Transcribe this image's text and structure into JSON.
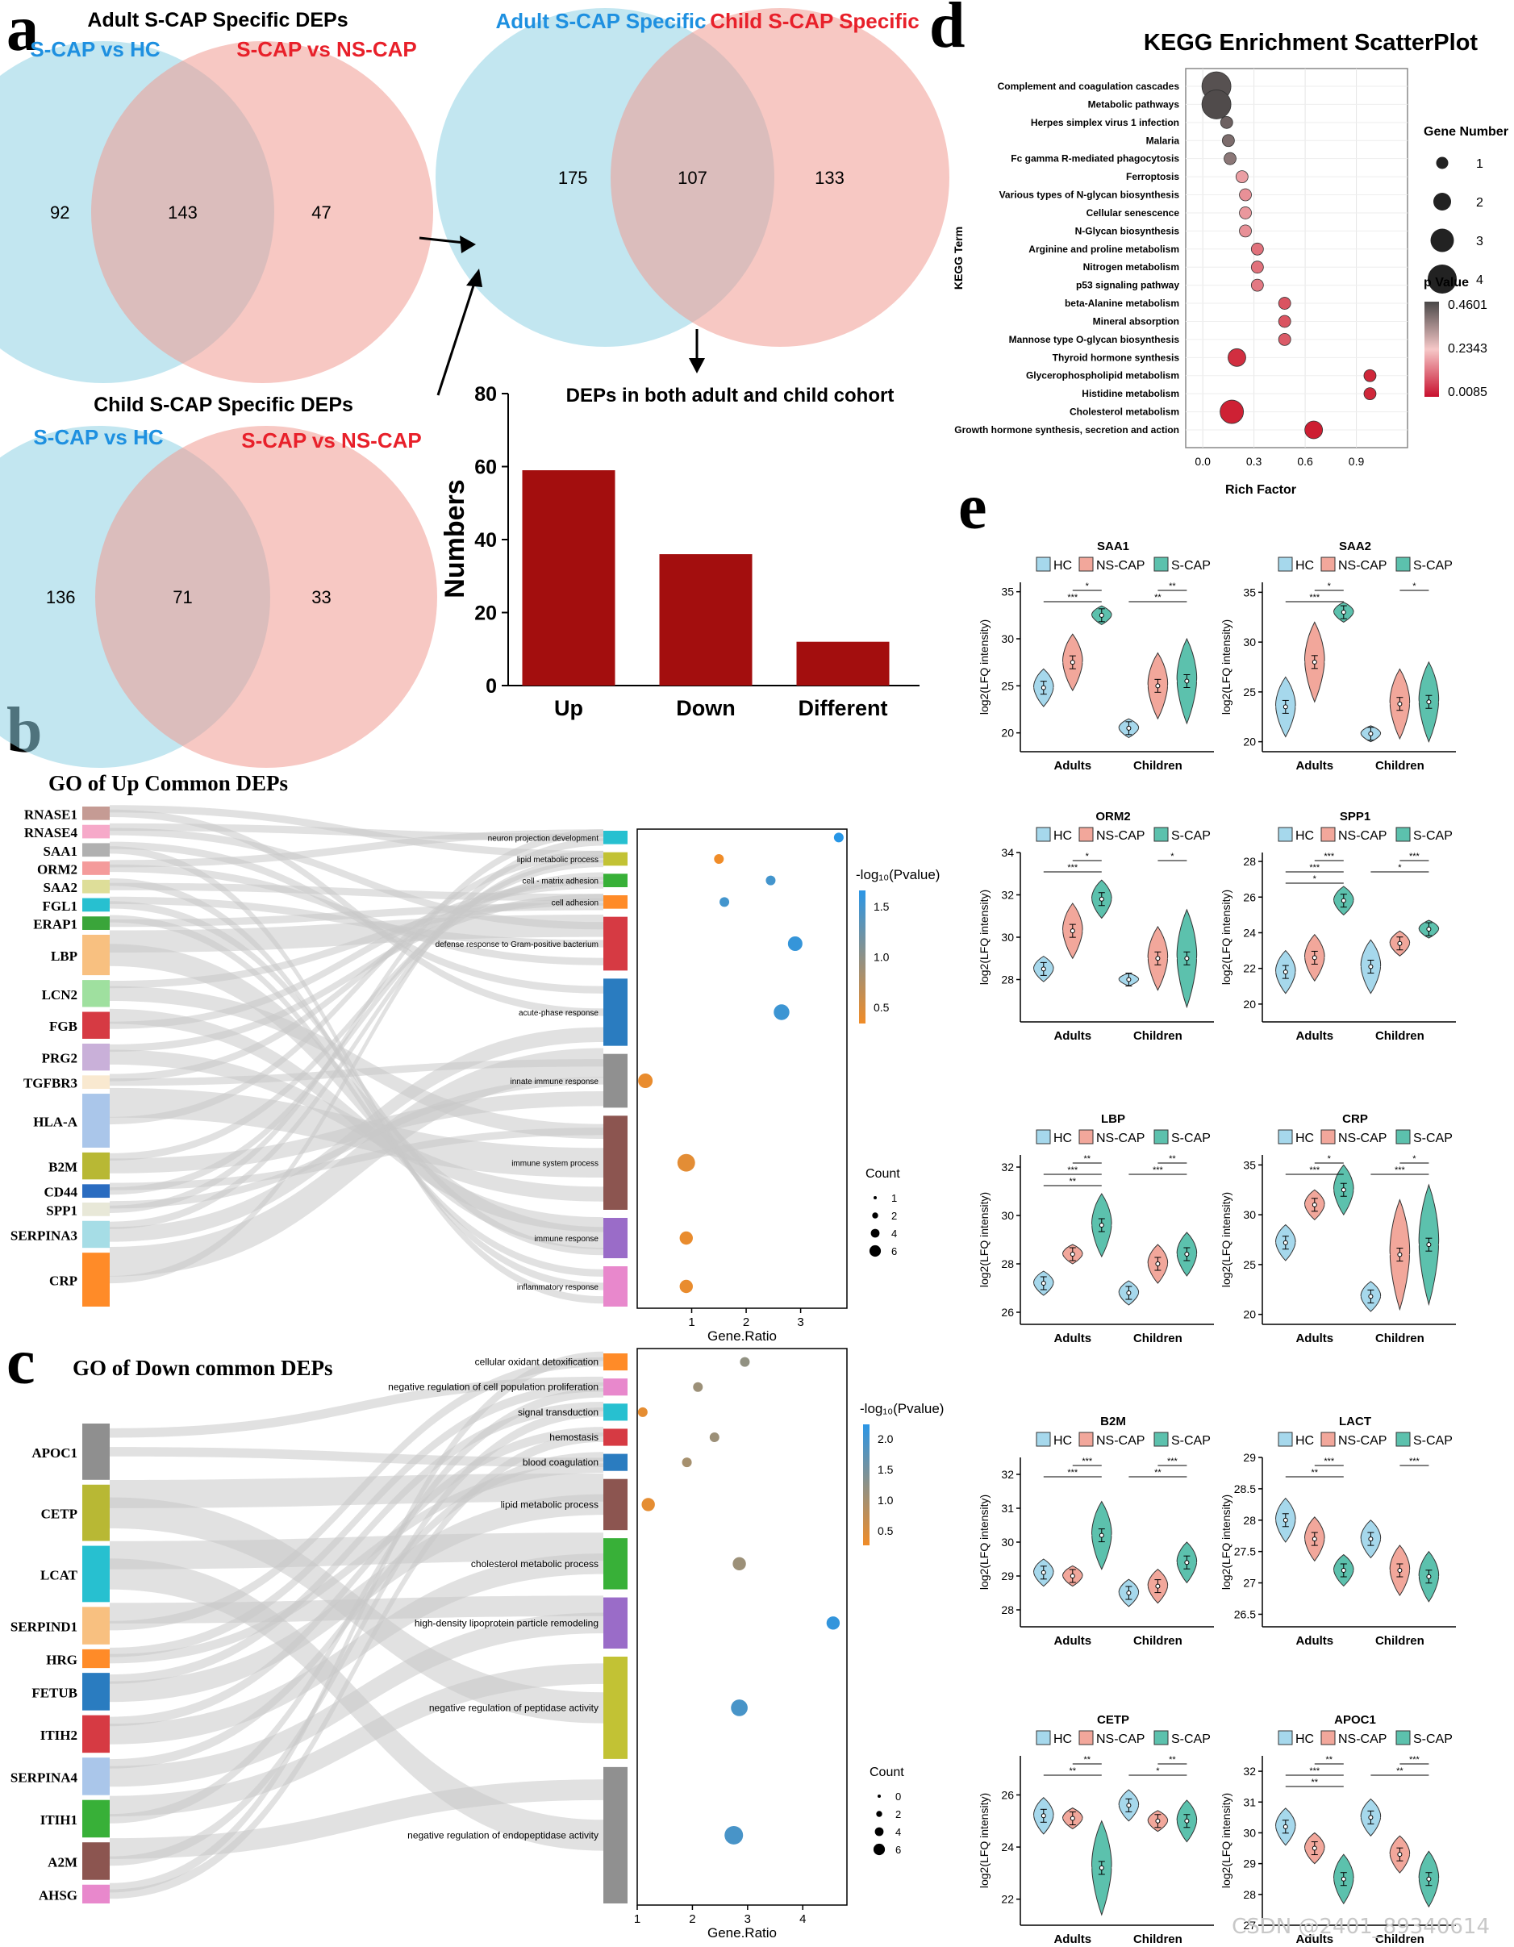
{
  "panel_letters": {
    "a": "a",
    "b": "b",
    "c": "c",
    "d": "d",
    "e": "e"
  },
  "watermark": "CSDN @2401_89340614",
  "colors": {
    "venn_blue": "#8fd2e3",
    "venn_red": "#f19a91",
    "label_blue": "#1e90e0",
    "label_red": "#e8202a",
    "bar": "#a30e0e",
    "hc": "#a6d8ec",
    "ns": "#f2a79b",
    "scap": "#5cc1ad"
  },
  "chart_data": [
    {
      "type": "venn",
      "title": "Adult S-CAP Specific DEPs",
      "sets": [
        "S-CAP vs HC",
        "S-CAP vs NS-CAP"
      ],
      "only_left": 92,
      "overlap": 143,
      "only_right": 47
    },
    {
      "type": "venn",
      "title": "Child S-CAP Specific DEPs",
      "sets": [
        "S-CAP vs HC",
        "S-CAP vs NS-CAP"
      ],
      "only_left": 136,
      "overlap": 71,
      "only_right": 33
    },
    {
      "type": "venn",
      "title": "",
      "sets": [
        "Adult  S-CAP Specific",
        "Child  S-CAP Specific"
      ],
      "only_left": 175,
      "overlap": 107,
      "only_right": 133
    },
    {
      "type": "bar",
      "title": "DEPs in both adult  and child cohort",
      "categories": [
        "Up",
        "Down",
        "Different"
      ],
      "values": [
        59,
        36,
        12
      ],
      "ylabel": "Numbers",
      "ylim": [
        0,
        80
      ],
      "yticks": [
        0,
        20,
        40,
        60,
        80
      ]
    },
    {
      "type": "scatter",
      "title": "KEGG Enrichment ScatterPlot",
      "xlabel": "Rich Factor",
      "ylabel": "KEGG Term",
      "xticks": [
        "0.0",
        "0.3",
        "0.6",
        "0.9"
      ],
      "xlim": [
        -0.1,
        1.2
      ],
      "size_legend_title": "Gene Number",
      "size_levels": [
        "1",
        "2",
        "3",
        "4"
      ],
      "color_legend_title": "p Value",
      "color_ticks": [
        "0.4601",
        "0.2343",
        "0.0085"
      ],
      "terms": [
        {
          "name": "Complement and coagulation cascades",
          "x": 0.08,
          "genes": 4,
          "p": 0.45
        },
        {
          "name": "Metabolic pathways",
          "x": 0.08,
          "genes": 4,
          "p": 0.46
        },
        {
          "name": "Herpes simplex virus 1 infection",
          "x": 0.14,
          "genes": 1,
          "p": 0.42
        },
        {
          "name": "Malaria",
          "x": 0.15,
          "genes": 1,
          "p": 0.4
        },
        {
          "name": "Fc gamma R-mediated phagocytosis",
          "x": 0.16,
          "genes": 1,
          "p": 0.38
        },
        {
          "name": "Ferroptosis",
          "x": 0.23,
          "genes": 1,
          "p": 0.18
        },
        {
          "name": "Various types of N-glycan biosynthesis",
          "x": 0.25,
          "genes": 1,
          "p": 0.16
        },
        {
          "name": "Cellular senescence",
          "x": 0.25,
          "genes": 1,
          "p": 0.17
        },
        {
          "name": "N-Glycan biosynthesis",
          "x": 0.25,
          "genes": 1,
          "p": 0.16
        },
        {
          "name": "Arginine and proline metabolism",
          "x": 0.32,
          "genes": 1,
          "p": 0.12
        },
        {
          "name": "Nitrogen metabolism",
          "x": 0.32,
          "genes": 1,
          "p": 0.12
        },
        {
          "name": "p53 signaling pathway",
          "x": 0.32,
          "genes": 1,
          "p": 0.13
        },
        {
          "name": "beta-Alanine metabolism",
          "x": 0.48,
          "genes": 1,
          "p": 0.08
        },
        {
          "name": "Mineral absorption",
          "x": 0.48,
          "genes": 1,
          "p": 0.08
        },
        {
          "name": "Mannose type O-glycan biosynthesis",
          "x": 0.48,
          "genes": 1,
          "p": 0.09
        },
        {
          "name": "Thyroid hormone synthesis",
          "x": 0.2,
          "genes": 2,
          "p": 0.03
        },
        {
          "name": "Glycerophospholipid metabolism",
          "x": 0.98,
          "genes": 1,
          "p": 0.02
        },
        {
          "name": "Histidine metabolism",
          "x": 0.98,
          "genes": 1,
          "p": 0.02
        },
        {
          "name": "Cholesterol metabolism",
          "x": 0.17,
          "genes": 3,
          "p": 0.012
        },
        {
          "name": "Growth hormone synthesis, secretion and action",
          "x": 0.65,
          "genes": 2,
          "p": 0.0085
        }
      ]
    },
    {
      "type": "sankey-dot",
      "title": "GO of Up Common DEPs",
      "genes": [
        "RNASE1",
        "RNASE4",
        "SAA1",
        "ORM2",
        "SAA2",
        "FGL1",
        "ERAP1",
        "LBP",
        "LCN2",
        "FGB",
        "PRG2",
        "TGFBR3",
        "HLA-A",
        "B2M",
        "CD44",
        "SPP1",
        "SERPINA3",
        "CRP"
      ],
      "gene_colors": [
        "#c59b94",
        "#f6a9c9",
        "#b0b0b0",
        "#f49b9b",
        "#dede99",
        "#27c0d0",
        "#3aa53a",
        "#f8c080",
        "#9fe09f",
        "#d63a43",
        "#c9b0d9",
        "#f9e9d0",
        "#aac6ea",
        "#b8b834",
        "#2a6cc0",
        "#e8e8d8",
        "#a6dde6",
        "#ff8b28"
      ],
      "gene_weights": [
        1,
        1,
        1,
        1,
        1,
        1,
        1,
        3,
        2,
        2,
        2,
        1,
        4,
        2,
        1,
        1,
        2,
        4
      ],
      "terms": [
        {
          "name": "neuron projection development",
          "ratio": 3.7,
          "logp": 1.8,
          "weight": 1,
          "color": "#27c0d0"
        },
        {
          "name": "lipid metabolic process",
          "ratio": 1.5,
          "logp": 0.3,
          "weight": 1,
          "color": "#c2c234"
        },
        {
          "name": "cell - matrix adhesion",
          "ratio": 2.45,
          "logp": 1.6,
          "weight": 1,
          "color": "#38b038"
        },
        {
          "name": "cell adhesion",
          "ratio": 1.6,
          "logp": 1.6,
          "weight": 1,
          "color": "#ff8b28"
        },
        {
          "name": "defense response to Gram-positive bacterium",
          "ratio": 2.9,
          "logp": 1.7,
          "weight": 4,
          "color": "#d63a43"
        },
        {
          "name": "acute-phase response",
          "ratio": 2.65,
          "logp": 1.65,
          "weight": 5,
          "color": "#2a7cc0"
        },
        {
          "name": "innate immune response",
          "ratio": 0.15,
          "logp": 0.35,
          "weight": 4,
          "color": "#909090"
        },
        {
          "name": "immune system process",
          "ratio": 0.9,
          "logp": 0.4,
          "weight": 7,
          "color": "#8c5550"
        },
        {
          "name": "immune response",
          "ratio": 0.9,
          "logp": 0.35,
          "weight": 3,
          "color": "#9a6cc8"
        },
        {
          "name": "inflammatory response",
          "ratio": 0.9,
          "logp": 0.35,
          "weight": 3,
          "color": "#e888cc"
        }
      ],
      "xlabel": "Gene.Ratio",
      "xticks": [
        "1",
        "2",
        "3"
      ],
      "legend_title": "-log₁₀(Pvalue)",
      "legend_ticks": [
        "1.5",
        "1.0",
        "0.5"
      ],
      "count_title": "Count",
      "count_levels": [
        "1",
        "2",
        "4",
        "6"
      ]
    },
    {
      "type": "sankey-dot",
      "title": "GO of Down common DEPs",
      "genes": [
        "APOC1",
        "CETP",
        "LCAT",
        "SERPIND1",
        "HRG",
        "FETUB",
        "ITIH2",
        "SERPINA4",
        "ITIH1",
        "A2M",
        "AHSG"
      ],
      "gene_colors": [
        "#8f8f8f",
        "#b8b834",
        "#27c0d0",
        "#f8c080",
        "#ff8b28",
        "#2a7cc0",
        "#d63a43",
        "#aac6ea",
        "#38b038",
        "#8c5550",
        "#e888cc"
      ],
      "gene_weights": [
        3,
        3,
        3,
        2,
        1,
        2,
        2,
        2,
        2,
        2,
        1
      ],
      "terms": [
        {
          "name": "cellular oxidant detoxification",
          "ratio": 2.95,
          "logp": 1.2,
          "weight": 1,
          "color": "#ff8b28"
        },
        {
          "name": "negative regulation of cell population proliferation",
          "ratio": 2.1,
          "logp": 1.1,
          "weight": 1,
          "color": "#e888cc"
        },
        {
          "name": "signal transduction",
          "ratio": 1.1,
          "logp": 0.4,
          "weight": 1,
          "color": "#27c0d0"
        },
        {
          "name": "hemostasis",
          "ratio": 2.4,
          "logp": 1.1,
          "weight": 1,
          "color": "#d63a43"
        },
        {
          "name": "blood coagulation",
          "ratio": 1.9,
          "logp": 1.0,
          "weight": 1,
          "color": "#2a7cc0"
        },
        {
          "name": "lipid metabolic process",
          "ratio": 1.2,
          "logp": 0.4,
          "weight": 3,
          "color": "#8c5550"
        },
        {
          "name": "cholesterol metabolic process",
          "ratio": 2.85,
          "logp": 1.1,
          "weight": 3,
          "color": "#38b038"
        },
        {
          "name": "high-density lipoprotein particle remodeling",
          "ratio": 4.55,
          "logp": 2.1,
          "weight": 3,
          "color": "#9a6cc8"
        },
        {
          "name": "negative regulation of peptidase activity",
          "ratio": 2.85,
          "logp": 1.9,
          "weight": 6,
          "color": "#c2c234"
        },
        {
          "name": "negative regulation of endopeptidase activity",
          "ratio": 2.75,
          "logp": 1.9,
          "weight": 8,
          "color": "#909090"
        }
      ],
      "xlabel": "Gene.Ratio",
      "xticks": [
        "1",
        "2",
        "3",
        "4"
      ],
      "legend_title": "-log₁₀(Pvalue)",
      "legend_ticks": [
        "2.0",
        "1.5",
        "1.0",
        "0.5"
      ],
      "count_title": "Count",
      "count_levels": [
        "0",
        "2",
        "4",
        "6"
      ]
    },
    {
      "type": "violin-grid",
      "legend": [
        "HC",
        "NS-CAP",
        "S-CAP"
      ],
      "groups": [
        "Adults",
        "Children"
      ],
      "ylabel": "log2(LFQ intensity)",
      "plots": [
        {
          "title": "SAA1",
          "ylim": [
            18,
            36
          ],
          "yticks": [
            20,
            25,
            30,
            35
          ],
          "means": [
            [
              24.8,
              27.5,
              32.5
            ],
            [
              20.5,
              25,
              25.5
            ]
          ],
          "spreads": [
            [
              2,
              3,
              1
            ],
            [
              1,
              3.5,
              4.5
            ]
          ],
          "sig": [
            "*",
            "***",
            "**",
            "**"
          ]
        },
        {
          "title": "SAA2",
          "ylim": [
            19,
            36
          ],
          "yticks": [
            20,
            25,
            30,
            35
          ],
          "means": [
            [
              23.5,
              28,
              33
            ],
            [
              20.8,
              23.8,
              24
            ]
          ],
          "spreads": [
            [
              3,
              4,
              1
            ],
            [
              0.8,
              3.5,
              4
            ]
          ],
          "sig": [
            "*",
            "***",
            "*"
          ]
        },
        {
          "title": "ORM2",
          "ylim": [
            26,
            34
          ],
          "yticks": [
            28,
            30,
            32,
            34
          ],
          "means": [
            [
              28.5,
              30.3,
              31.8
            ],
            [
              28,
              29,
              29
            ]
          ],
          "spreads": [
            [
              0.6,
              1.3,
              0.9
            ],
            [
              0.3,
              1.5,
              2.3
            ]
          ],
          "sig": [
            "*",
            "***",
            "*"
          ]
        },
        {
          "title": "SPP1",
          "ylim": [
            19,
            28.5
          ],
          "yticks": [
            20,
            22,
            24,
            26,
            28
          ],
          "means": [
            [
              21.8,
              22.6,
              25.8
            ],
            [
              22.1,
              23.4,
              24.2
            ]
          ],
          "spreads": [
            [
              1.2,
              1.3,
              0.8
            ],
            [
              1.5,
              0.7,
              0.5
            ]
          ],
          "sig": [
            "***",
            "***",
            "*",
            "***",
            "*"
          ]
        },
        {
          "title": "LBP",
          "ylim": [
            25.5,
            32.5
          ],
          "yticks": [
            26,
            28,
            30,
            32
          ],
          "means": [
            [
              27.2,
              28.4,
              29.6
            ],
            [
              26.8,
              28,
              28.4
            ]
          ],
          "spreads": [
            [
              0.5,
              0.4,
              1.3
            ],
            [
              0.5,
              0.8,
              0.9
            ]
          ],
          "sig": [
            "**",
            "***",
            "**",
            "**",
            "***"
          ]
        },
        {
          "title": "CRP",
          "ylim": [
            19,
            36
          ],
          "yticks": [
            20,
            25,
            30,
            35
          ],
          "means": [
            [
              27.2,
              31,
              32.5
            ],
            [
              21.8,
              26,
              27
            ]
          ],
          "spreads": [
            [
              1.8,
              1.5,
              2.5
            ],
            [
              1.5,
              5.5,
              6
            ]
          ],
          "sig": [
            "*",
            "***",
            "*",
            "***"
          ]
        },
        {
          "title": "B2M",
          "ylim": [
            27.5,
            32.5
          ],
          "yticks": [
            28,
            29,
            30,
            31,
            32
          ],
          "means": [
            [
              29.1,
              29,
              30.2
            ],
            [
              28.5,
              28.7,
              29.4
            ]
          ],
          "spreads": [
            [
              0.4,
              0.3,
              1
            ],
            [
              0.4,
              0.5,
              0.6
            ]
          ],
          "sig": [
            "***",
            "***",
            "***",
            "**"
          ]
        },
        {
          "title": "LACT",
          "ylim": [
            26.3,
            29
          ],
          "yticks": [
            26.5,
            27.0,
            27.5,
            28.0,
            28.5,
            29.0
          ],
          "means": [
            [
              28,
              27.7,
              27.2
            ],
            [
              27.7,
              27.2,
              27.1
            ]
          ],
          "spreads": [
            [
              0.35,
              0.35,
              0.25
            ],
            [
              0.3,
              0.4,
              0.4
            ]
          ],
          "sig": [
            "***",
            "**",
            "***"
          ]
        },
        {
          "title": "CETP",
          "ylim": [
            21,
            27.5
          ],
          "yticks": [
            22,
            24,
            26
          ],
          "means": [
            [
              25.2,
              25.1,
              23.2
            ],
            [
              25.6,
              25,
              25
            ]
          ],
          "spreads": [
            [
              0.7,
              0.4,
              1.8
            ],
            [
              0.6,
              0.4,
              0.8
            ]
          ],
          "sig": [
            "**",
            "**",
            "**",
            "*"
          ]
        },
        {
          "title": "APOC1",
          "ylim": [
            27,
            32.5
          ],
          "yticks": [
            27,
            28,
            29,
            30,
            31,
            32
          ],
          "means": [
            [
              30.2,
              29.5,
              28.5
            ],
            [
              30.5,
              29.3,
              28.5
            ]
          ],
          "spreads": [
            [
              0.6,
              0.5,
              0.8
            ],
            [
              0.6,
              0.6,
              0.9
            ]
          ],
          "sig": [
            "**",
            "***",
            "**",
            "***",
            "**"
          ]
        }
      ]
    }
  ]
}
